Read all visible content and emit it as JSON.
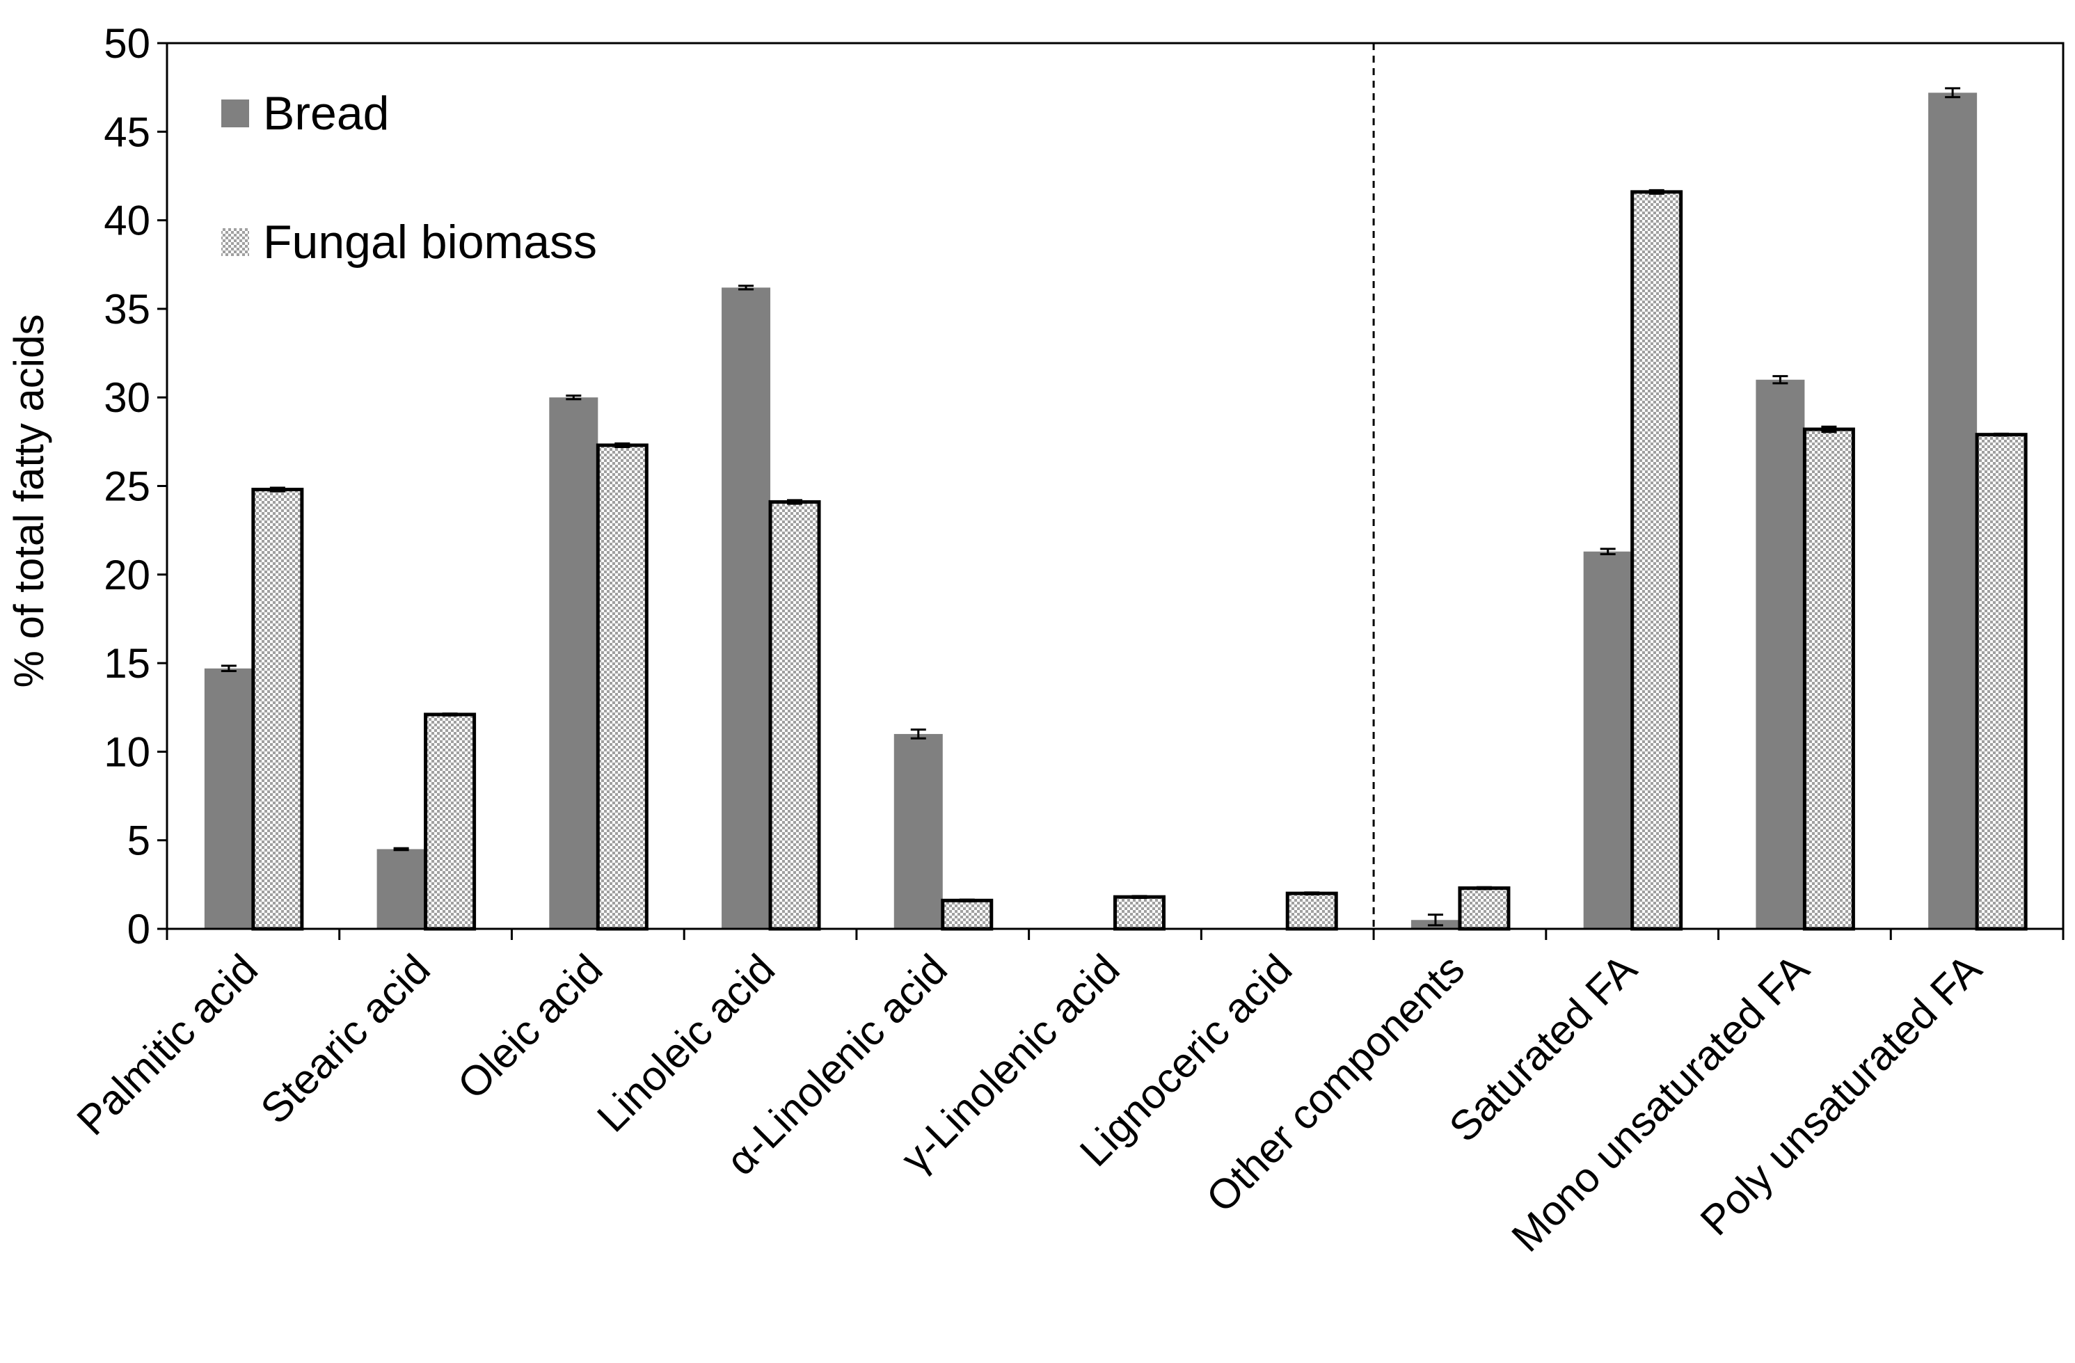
{
  "chart_data": {
    "type": "bar",
    "title": "",
    "xlabel": "",
    "ylabel": "% of total fatty acids",
    "ylim": [
      0,
      50
    ],
    "yticks": [
      "0",
      "5",
      "10",
      "15",
      "20",
      "25",
      "30",
      "35",
      "40",
      "45",
      "50"
    ],
    "grid": false,
    "legend_position": "top-left",
    "divider_after_category": 7,
    "categories": [
      "Palmitic acid",
      "Stearic acid",
      "Oleic acid",
      "Linoleic acid",
      "α-Linolenic acid",
      "γ-Linolenic acid",
      "Lignoceric acid",
      "Other components",
      "Saturated FA",
      "Mono unsaturated FA",
      "Poly unsaturated FA"
    ],
    "series": [
      {
        "name": "Bread",
        "fill": "#808080",
        "values": [
          14.7,
          4.5,
          30.0,
          36.2,
          11.0,
          0,
          0,
          0.5,
          21.3,
          31.0,
          47.2
        ],
        "errors": [
          0.15,
          0.05,
          0.1,
          0.1,
          0.25,
          0,
          0,
          0.3,
          0.15,
          0.2,
          0.25
        ]
      },
      {
        "name": "Fungal biomass",
        "fill": "#d4d4d4",
        "values": [
          24.8,
          12.1,
          27.3,
          24.1,
          1.6,
          1.8,
          2.0,
          2.3,
          41.6,
          28.2,
          27.9
        ],
        "errors": [
          0.1,
          0.05,
          0.1,
          0.1,
          0.05,
          0.05,
          0.05,
          0.05,
          0.1,
          0.15,
          0.05
        ]
      }
    ]
  }
}
